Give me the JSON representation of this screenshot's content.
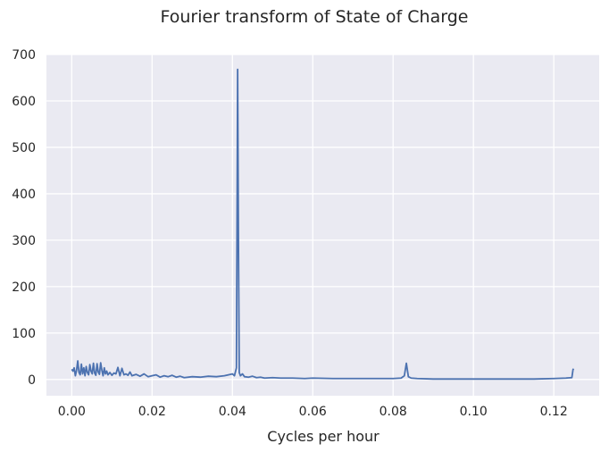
{
  "chart_data": {
    "type": "line",
    "title": "Fourier transform of State of Charge",
    "xlabel": "Cycles per hour",
    "ylabel": "",
    "xlim": [
      -0.0063,
      0.1313
    ],
    "ylim": [
      -35,
      700
    ],
    "x_ticks": [
      0.0,
      0.02,
      0.04,
      0.06,
      0.08,
      0.1,
      0.12
    ],
    "x_tick_labels": [
      "0.00",
      "0.02",
      "0.04",
      "0.06",
      "0.08",
      "0.10",
      "0.12"
    ],
    "y_ticks": [
      0,
      100,
      200,
      300,
      400,
      500,
      600,
      700
    ],
    "y_tick_labels": [
      "0",
      "100",
      "200",
      "300",
      "400",
      "500",
      "600",
      "700"
    ],
    "grid": true,
    "style": {
      "background": "#EAEAF2",
      "grid_color": "#ffffff",
      "line_color": "#4C72B0"
    },
    "series": [
      {
        "x": [
          0.0,
          0.0003,
          0.0006,
          0.0009,
          0.0012,
          0.0015,
          0.0018,
          0.0021,
          0.0024,
          0.0027,
          0.003,
          0.0033,
          0.0036,
          0.0039,
          0.0042,
          0.0045,
          0.0048,
          0.0051,
          0.0054,
          0.0057,
          0.006,
          0.0063,
          0.0066,
          0.0069,
          0.0072,
          0.0075,
          0.0078,
          0.0081,
          0.0084,
          0.0087,
          0.009,
          0.0095,
          0.01,
          0.0105,
          0.011,
          0.0115,
          0.012,
          0.0125,
          0.013,
          0.0135,
          0.014,
          0.0145,
          0.015,
          0.016,
          0.017,
          0.018,
          0.019,
          0.02,
          0.021,
          0.022,
          0.023,
          0.024,
          0.025,
          0.026,
          0.027,
          0.028,
          0.03,
          0.032,
          0.034,
          0.036,
          0.038,
          0.039,
          0.04,
          0.0405,
          0.041,
          0.0413,
          0.0415,
          0.0417,
          0.042,
          0.0425,
          0.043,
          0.044,
          0.045,
          0.046,
          0.047,
          0.048,
          0.05,
          0.052,
          0.055,
          0.058,
          0.06,
          0.065,
          0.07,
          0.075,
          0.08,
          0.082,
          0.0828,
          0.0833,
          0.0838,
          0.0845,
          0.086,
          0.09,
          0.095,
          0.1,
          0.105,
          0.11,
          0.115,
          0.12,
          0.123,
          0.1245,
          0.1248,
          0.125
        ],
        "values": [
          22,
          18,
          25,
          8,
          20,
          40,
          15,
          10,
          33,
          12,
          25,
          8,
          28,
          15,
          10,
          32,
          18,
          12,
          35,
          14,
          9,
          34,
          16,
          11,
          36,
          20,
          8,
          25,
          12,
          18,
          10,
          15,
          9,
          14,
          12,
          26,
          8,
          24,
          10,
          12,
          9,
          16,
          8,
          11,
          7,
          12,
          6,
          8,
          10,
          5,
          8,
          6,
          9,
          5,
          7,
          4,
          6,
          5,
          7,
          6,
          8,
          10,
          12,
          8,
          25,
          668,
          300,
          15,
          8,
          12,
          6,
          5,
          7,
          4,
          5,
          3,
          4,
          3,
          3,
          2,
          3,
          2,
          2,
          2,
          2,
          3,
          8,
          35,
          6,
          3,
          2,
          1,
          1,
          1,
          1,
          1,
          1,
          2,
          3,
          4,
          22,
          21
        ]
      }
    ]
  }
}
